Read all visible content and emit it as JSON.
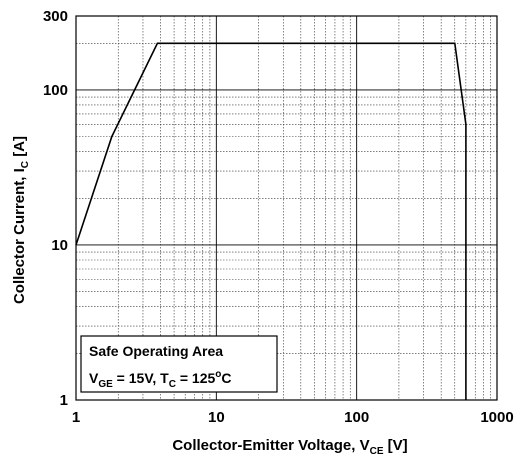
{
  "chart_data": {
    "type": "line",
    "xlabel": {
      "main": "Collector-Emitter Voltage, V",
      "sub": "CE",
      "unit": " [V]"
    },
    "ylabel": {
      "main": "Collector Current, I",
      "sub": "C",
      "unit": " [A]"
    },
    "x_scale": "log",
    "y_scale": "log",
    "xlim": [
      1,
      1000
    ],
    "ylim": [
      1,
      300
    ],
    "x_ticks": [
      "1",
      "10",
      "100",
      "1000"
    ],
    "y_ticks": [
      "1",
      "10",
      "100",
      "300"
    ],
    "grid": true,
    "annotation": {
      "line1": "Safe Operating Area",
      "line2_v": "V",
      "line2_v_sub": "GE",
      "line2_mid": " = 15V, T",
      "line2_t_sub": "C",
      "line2_val": " = 125",
      "line2_deg": "o",
      "line2_unit": "C"
    },
    "series": [
      {
        "points": [
          {
            "x": 1,
            "y": 10
          },
          {
            "x": 1.8,
            "y": 50
          },
          {
            "x": 3.8,
            "y": 200
          },
          {
            "x": 500,
            "y": 200
          },
          {
            "x": 600,
            "y": 60
          },
          {
            "x": 600,
            "y": 1
          }
        ]
      }
    ]
  }
}
